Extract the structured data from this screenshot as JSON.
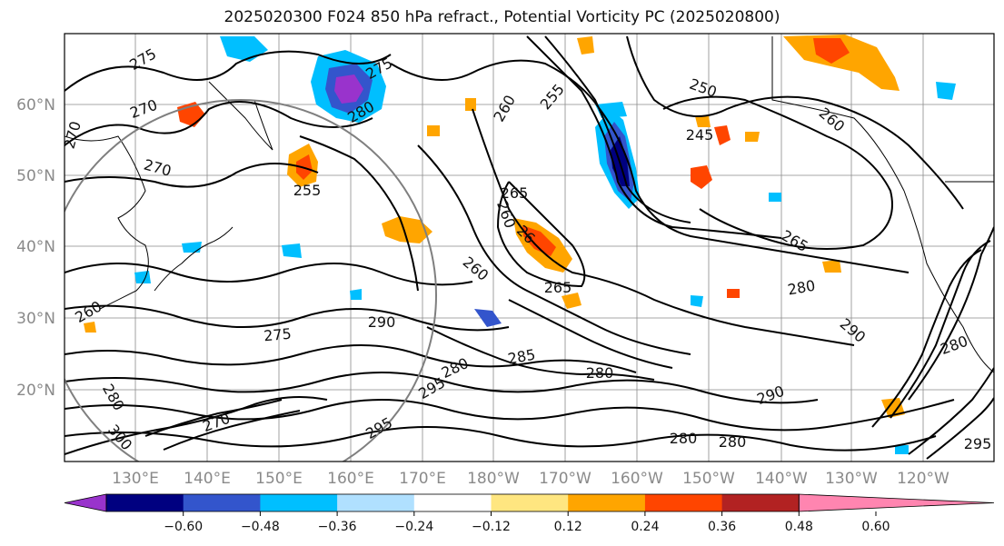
{
  "title": "2025020300 F024 850 hPa refract., Potential Vorticity PC (2025020800)",
  "map": {
    "lat_labels": [
      "60°N",
      "50°N",
      "40°N",
      "30°N",
      "20°N"
    ],
    "lon_labels": [
      "130°E",
      "140°E",
      "150°E",
      "160°E",
      "170°E",
      "180°W",
      "170°W",
      "160°W",
      "150°W",
      "140°W",
      "130°W",
      "120°W"
    ],
    "contour_labels": [
      "275",
      "275",
      "270",
      "270",
      "270",
      "280",
      "255",
      "260",
      "255",
      "250",
      "245",
      "260",
      "265",
      "260",
      "265",
      "26",
      "260",
      "280",
      "260",
      "275",
      "280",
      "285",
      "280",
      "295",
      "290",
      "280",
      "295",
      "280",
      "270",
      "280",
      "290",
      "300",
      "265",
      "295",
      "280",
      "290"
    ]
  },
  "colorbar": {
    "colors": [
      "#9933cc",
      "#000080",
      "#3355cc",
      "#00bfff",
      "#b0e0ff",
      "#ffffff",
      "#ffe680",
      "#ffa500",
      "#ff4500",
      "#b22222",
      "#ff85b0"
    ],
    "tick_labels": [
      "−0.60",
      "−0.48",
      "−0.36",
      "−0.24",
      "−0.12",
      "0.12",
      "0.24",
      "0.36",
      "0.48",
      "0.60"
    ]
  }
}
